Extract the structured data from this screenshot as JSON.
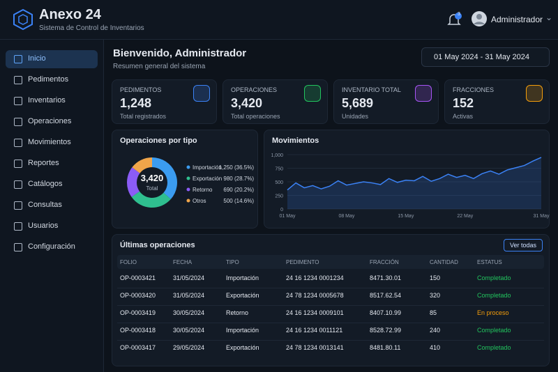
{
  "header": {
    "title": "Anexo 24",
    "subtitle": "Sistema de Control de Inventarios",
    "notifications": "3",
    "user": "Administrador"
  },
  "sidebar": {
    "items": [
      "Inicio",
      "Pedimentos",
      "Inventarios",
      "Operaciones",
      "Movimientos",
      "Reportes",
      "Catálogos",
      "Consultas",
      "Usuarios",
      "Configuración"
    ]
  },
  "welcome": {
    "title": "Bienvenido, Administrador",
    "subtitle": "Resumen general del sistema",
    "date_range": "01 May 2024 - 31 May 2024"
  },
  "kpis": [
    {
      "label": "PEDIMENTOS",
      "value": "1,248",
      "caption": "Total registrados",
      "color": "#3b82f6"
    },
    {
      "label": "OPERACIONES",
      "value": "3,420",
      "caption": "Total operaciones",
      "color": "#22c55e"
    },
    {
      "label": "INVENTARIO TOTAL",
      "value": "5,689",
      "caption": "Unidades",
      "color": "#a855f7"
    },
    {
      "label": "FRACCIONES",
      "value": "152",
      "caption": "Activas",
      "color": "#f59e0b"
    }
  ],
  "chart_data": [
    {
      "type": "pie",
      "title": "Operaciones por tipo",
      "center_value": "3,420",
      "center_label": "Total",
      "categories": [
        "Importación",
        "Exportación",
        "Retorno",
        "Otros"
      ],
      "values": [
        1250,
        980,
        690,
        500
      ],
      "value_labels": [
        "1,250 (36.5%)",
        "980 (28.7%)",
        "690 (20.2%)",
        "500 (14.6%)"
      ],
      "colors": [
        "#3b9cf0",
        "#2fbf8f",
        "#8b5cf6",
        "#f0a54a"
      ]
    },
    {
      "type": "line",
      "title": "Movimientos",
      "categories": [
        "01 May",
        null,
        null,
        null,
        null,
        null,
        null,
        "08 May",
        null,
        null,
        null,
        null,
        null,
        null,
        "15 May",
        null,
        null,
        null,
        null,
        null,
        null,
        "22 May",
        null,
        null,
        null,
        null,
        null,
        null,
        null,
        null,
        "31 May"
      ],
      "values": [
        350,
        480,
        390,
        430,
        370,
        420,
        520,
        440,
        470,
        500,
        480,
        450,
        560,
        490,
        530,
        520,
        600,
        510,
        560,
        640,
        580,
        620,
        560,
        650,
        700,
        640,
        720,
        760,
        800,
        880,
        950
      ],
      "color": "#3b82f6",
      "ylim": [
        0,
        1000
      ],
      "yticks": [
        0,
        250,
        500,
        750,
        {
          "value": 1000,
          "label": "1,000"
        }
      ],
      "grid": true
    }
  ],
  "table": {
    "title": "Últimas operaciones",
    "button": "Ver todas",
    "columns": [
      "FOLIO",
      "FECHA",
      "TIPO",
      "PEDIMENTO",
      "FRACCIÓN",
      "CANTIDAD",
      "ESTATUS"
    ],
    "rows": [
      [
        "OP-0003421",
        "31/05/2024",
        "Importación",
        "24 16 1234 0001234",
        "8471.30.01",
        "150",
        "Completado"
      ],
      [
        "OP-0003420",
        "31/05/2024",
        "Exportación",
        "24 78 1234 0005678",
        "8517.62.54",
        "320",
        "Completado"
      ],
      [
        "OP-0003419",
        "30/05/2024",
        "Retorno",
        "24 16 1234 0009101",
        "8407.10.99",
        "85",
        "En proceso"
      ],
      [
        "OP-0003418",
        "30/05/2024",
        "Importación",
        "24 16 1234 0011121",
        "8528.72.99",
        "240",
        "Completado"
      ],
      [
        "OP-0003417",
        "29/05/2024",
        "Exportación",
        "24 78 1234 0013141",
        "8481.80.11",
        "410",
        "Completado"
      ]
    ],
    "status_colors": [
      "#22c55e",
      "#22c55e",
      "#f59e0b",
      "#22c55e",
      "#22c55e"
    ]
  }
}
